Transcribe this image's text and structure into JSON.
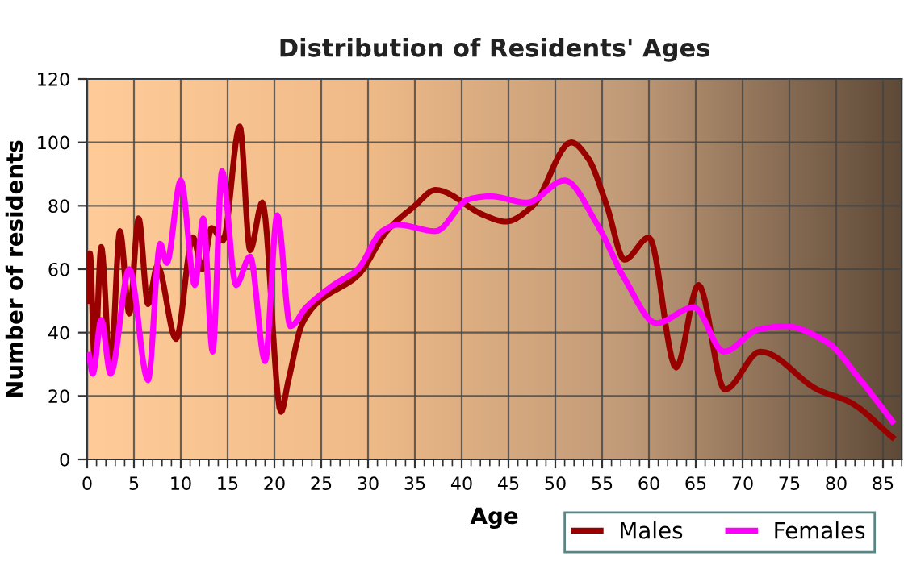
{
  "chart_data": {
    "type": "line",
    "title": "Distribution of Residents' Ages",
    "xlabel": "Age",
    "ylabel": "Number of residents",
    "xlim": [
      0,
      87
    ],
    "xticks": [
      0,
      5,
      10,
      15,
      20,
      25,
      30,
      35,
      40,
      45,
      50,
      55,
      60,
      65,
      70,
      75,
      80,
      85
    ],
    "ylim": [
      0,
      120
    ],
    "yticks": [
      0,
      20,
      40,
      60,
      80,
      100,
      120
    ],
    "grid": true,
    "legend": "bottom right",
    "marker": "none",
    "line_style": "solid",
    "series": [
      {
        "name": "Males",
        "color": "#990000",
        "x": [
          0,
          0.3,
          0.8,
          1.5,
          2.5,
          3.5,
          4.5,
          5.5,
          6.5,
          7.5,
          9.5,
          11.3,
          12.3,
          13.3,
          14.5,
          16.3,
          17.4,
          18.7,
          20.7,
          21.5,
          23,
          24.8,
          28.9,
          32,
          35,
          37.2,
          42.4,
          44.7,
          47.6,
          51.7,
          53.5,
          55.5,
          57.4,
          60,
          62.9,
          65.3,
          68.1,
          71.9,
          78,
          81.5,
          86
        ],
        "values": [
          50,
          65,
          30,
          67,
          28,
          72,
          46,
          76,
          49,
          61,
          38,
          70,
          60,
          73,
          69,
          105,
          66,
          81,
          15,
          25,
          43,
          50,
          58,
          72,
          80,
          85,
          77,
          75,
          80,
          100,
          95,
          80,
          63,
          70,
          29,
          55,
          22,
          34,
          22,
          18,
          7
        ]
      },
      {
        "name": "Females",
        "color": "#ff00ff",
        "x": [
          0.2,
          0.6,
          1.5,
          2.5,
          4.5,
          6.5,
          7.8,
          8.5,
          10,
          11.5,
          12.4,
          13.4,
          14.4,
          15.9,
          17.4,
          19,
          20.3,
          21.7,
          23.4,
          26.3,
          28.9,
          31.5,
          33.2,
          37.2,
          40.7,
          43,
          47,
          51,
          54.5,
          57.4,
          60.8,
          64.8,
          68,
          71.7,
          74.6,
          79,
          82.6,
          86
        ],
        "values": [
          33,
          27,
          44,
          27,
          60,
          25,
          68,
          62,
          88,
          55,
          76,
          34,
          91,
          55,
          64,
          31,
          77,
          42,
          48,
          55,
          60,
          72,
          74,
          72,
          82,
          83,
          81,
          88,
          74,
          57,
          43,
          48,
          34,
          41,
          42,
          37,
          25,
          12
        ]
      }
    ]
  }
}
